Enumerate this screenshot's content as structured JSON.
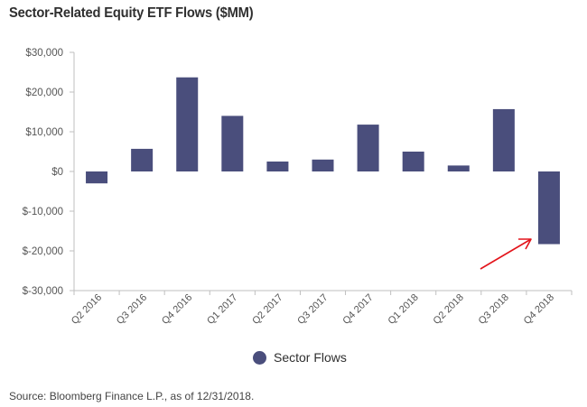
{
  "title": "Sector-Related Equity ETF Flows ($MM)",
  "source_note": "Source: Bloomberg Finance L.P., as of 12/31/2018.",
  "colors": {
    "bar": "#4a4e7c",
    "axis": "#bfbfbf",
    "grid": "#d9d9d9",
    "arrow": "#e3141b"
  },
  "chart_data": {
    "type": "bar",
    "title": "Sector-Related Equity ETF Flows ($MM)",
    "categories": [
      "Q2 2016",
      "Q3 2016",
      "Q4 2016",
      "Q1 2017",
      "Q2 2017",
      "Q3 2017",
      "Q4 2017",
      "Q1 2018",
      "Q2 2018",
      "Q3 2018",
      "Q4 2018"
    ],
    "series": [
      {
        "name": "Sector Flows",
        "values": [
          -3000,
          5700,
          23700,
          14000,
          2500,
          3000,
          11800,
          5000,
          1500,
          15700,
          -18300
        ]
      }
    ],
    "ylim": [
      -30000,
      30000
    ],
    "y_ticks": [
      -30000,
      -20000,
      -10000,
      0,
      10000,
      20000,
      30000
    ],
    "y_tick_labels": [
      "$-30,000",
      "$-20,000",
      "$-10,000",
      "$0",
      "$10,000",
      "$20,000",
      "$30,000"
    ],
    "xlabel": "",
    "ylabel": "",
    "grid": false,
    "legend": "bottom-center",
    "annotation": "red arrow pointing to Q4 2018 bar"
  }
}
